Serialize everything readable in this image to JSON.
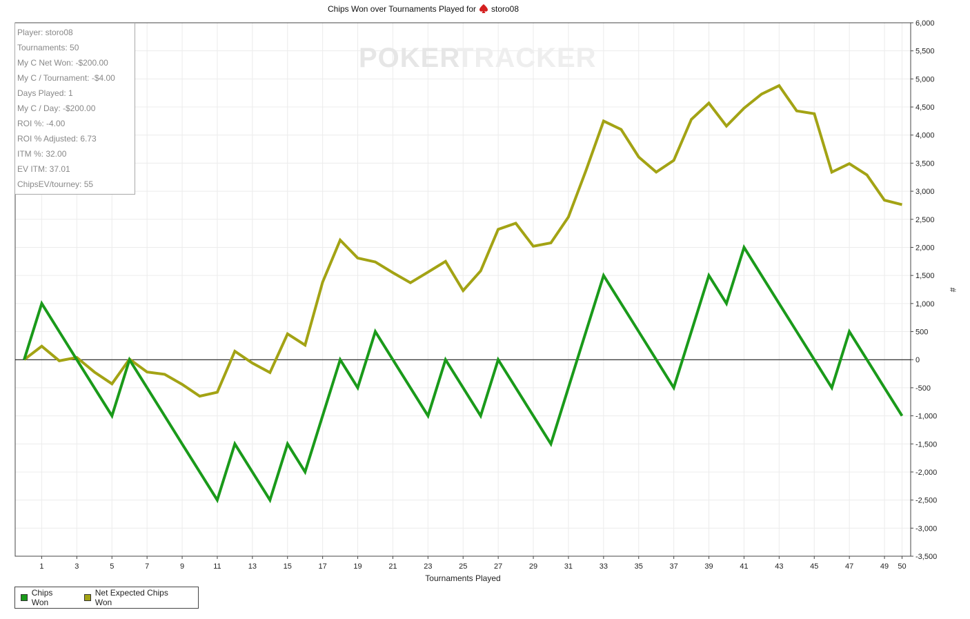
{
  "chart_data": {
    "type": "line",
    "title": "Chips Won over Tournaments Played for",
    "player_name": "storo08",
    "xlabel": "Tournaments Played",
    "ylabel": "#",
    "xlim": [
      0,
      50
    ],
    "ylim": [
      -3500,
      6000
    ],
    "x_ticks": [
      1,
      3,
      5,
      7,
      9,
      11,
      13,
      15,
      17,
      19,
      21,
      23,
      25,
      27,
      29,
      31,
      33,
      35,
      37,
      39,
      41,
      43,
      45,
      47,
      49,
      50
    ],
    "y_ticks": [
      "6,000",
      "5,500",
      "5,000",
      "4,500",
      "4,000",
      "3,500",
      "3,000",
      "2,500",
      "2,000",
      "1,500",
      "1,000",
      "500",
      "0",
      "-500",
      "-1,000",
      "-1,500",
      "-2,000",
      "-2,500",
      "-3,000",
      "-3,500"
    ],
    "y_tick_values": [
      6000,
      5500,
      5000,
      4500,
      4000,
      3500,
      3000,
      2500,
      2000,
      1500,
      1000,
      500,
      0,
      -500,
      -1000,
      -1500,
      -2000,
      -2500,
      -3000,
      -3500
    ],
    "grid": true,
    "legend_position": "bottom-left",
    "x": [
      0,
      1,
      2,
      3,
      4,
      5,
      6,
      7,
      8,
      9,
      10,
      11,
      12,
      13,
      14,
      15,
      16,
      17,
      18,
      19,
      20,
      21,
      22,
      23,
      24,
      25,
      26,
      27,
      28,
      29,
      30,
      31,
      32,
      33,
      34,
      35,
      36,
      37,
      38,
      39,
      40,
      41,
      42,
      43,
      44,
      45,
      46,
      47,
      48,
      49,
      50
    ],
    "series": [
      {
        "name": "Chips Won",
        "color": "#1a9a1a",
        "values": [
          0,
          1000,
          500,
          0,
          -500,
          -1000,
          0,
          -500,
          -1000,
          -1500,
          -2000,
          -2500,
          -1500,
          -2000,
          -2500,
          -1500,
          -2000,
          -1000,
          0,
          -500,
          500,
          0,
          -500,
          -1000,
          0,
          -500,
          -1000,
          0,
          -500,
          -1000,
          -1500,
          -500,
          500,
          1500,
          1000,
          500,
          0,
          -500,
          500,
          1500,
          1000,
          2000,
          1500,
          1000,
          500,
          0,
          -500,
          500,
          0,
          -500,
          -1000
        ]
      },
      {
        "name": "Net Expected Chips Won",
        "color": "#a3a314",
        "values": [
          0,
          240,
          -20,
          40,
          -220,
          -430,
          10,
          -220,
          -260,
          -440,
          -650,
          -580,
          150,
          -60,
          -230,
          460,
          260,
          1380,
          2130,
          1810,
          1740,
          1550,
          1370,
          1560,
          1750,
          1230,
          1580,
          2320,
          2430,
          2020,
          2080,
          2540,
          3370,
          4250,
          4100,
          3610,
          3340,
          3550,
          4280,
          4570,
          4160,
          4480,
          4730,
          4880,
          4430,
          4380,
          3340,
          3490,
          3290,
          2840,
          2760
        ]
      }
    ]
  },
  "stats": [
    "Player: storo08",
    "Tournaments: 50",
    "My C Net Won: -$200.00",
    "My C / Tournament: -$4.00",
    "Days Played: 1",
    "My C / Day: -$200.00",
    "ROI %: -4.00",
    "ROI % Adjusted: 6.73",
    "ITM %: 32.00",
    "EV ITM: 37.01",
    "ChipsEV/tourney: 55"
  ],
  "watermark": {
    "part1": "POKER",
    "part2": "TRACKER",
    "color1": "#e6e6e6",
    "color2": "#eeeeee"
  },
  "icons": {
    "title_icon": "poker-spade-icon",
    "title_icon_color": "#d42020"
  }
}
